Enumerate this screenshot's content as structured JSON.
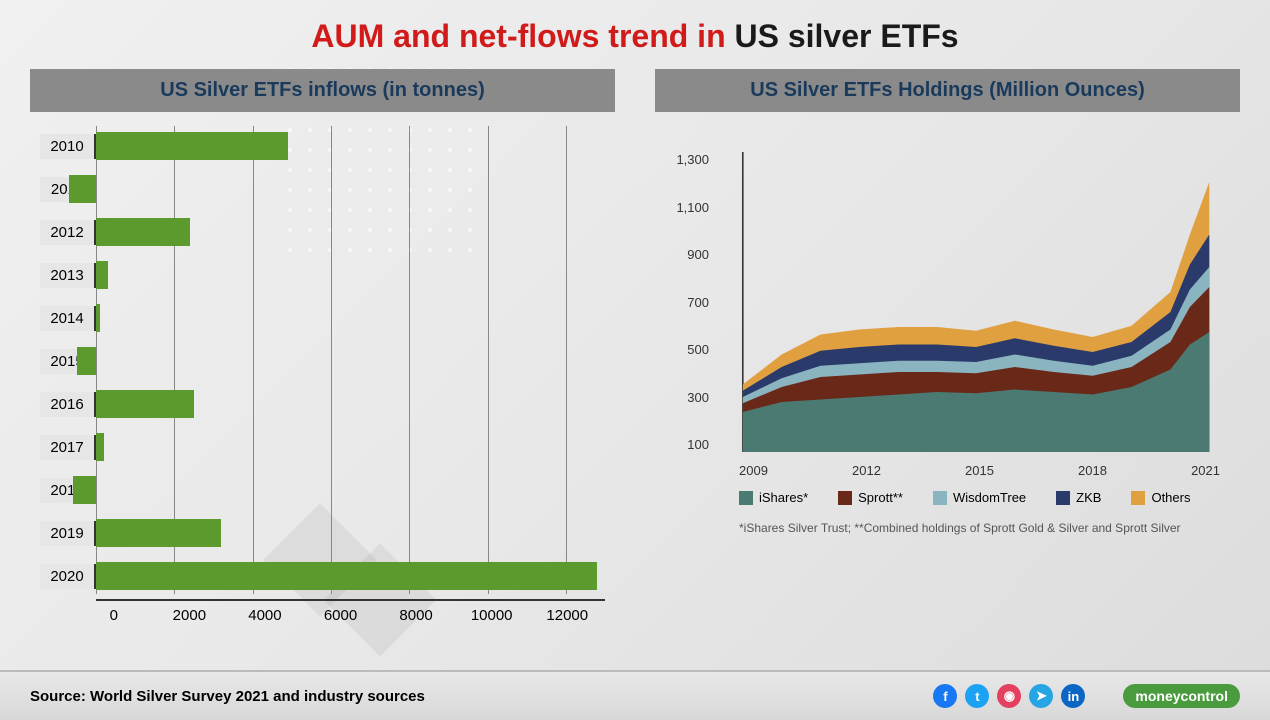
{
  "title": {
    "part1": "AUM and net-flows trend in ",
    "part2": "US silver ETFs"
  },
  "title_colors": {
    "part1": "#d11a1a",
    "part2": "#1a1a1a"
  },
  "title_fontsize": 32,
  "bar_chart": {
    "title": "US Silver ETFs inflows (in tonnes)",
    "type": "horizontal-bar",
    "bar_color": "#5c9a2e",
    "header_bg": "#8a8a8a",
    "header_text_color": "#1a3a5c",
    "years": [
      "2010",
      "2011",
      "2012",
      "2013",
      "2014",
      "2015",
      "2016",
      "2017",
      "2018",
      "2019",
      "2020"
    ],
    "values": [
      4900,
      -700,
      2400,
      300,
      100,
      -500,
      2500,
      200,
      -600,
      3200,
      12800
    ],
    "xlim": [
      -1000,
      13000
    ],
    "xticks": [
      0,
      2000,
      4000,
      6000,
      8000,
      10000,
      12000
    ]
  },
  "area_chart": {
    "title": "US Silver ETFs Holdings (Million Ounces)",
    "type": "stacked-area",
    "header_bg": "#8a8a8a",
    "header_text_color": "#1a3a5c",
    "background_color": "#ffffff",
    "xlim": [
      2009,
      2021
    ],
    "xticks": [
      2009,
      2012,
      2015,
      2018,
      2021
    ],
    "ylim": [
      100,
      1300
    ],
    "yticks": [
      100,
      300,
      500,
      700,
      900,
      1100,
      1300
    ],
    "series": [
      {
        "name": "iShares*",
        "color": "#4a7a72"
      },
      {
        "name": "Sprott**",
        "color": "#6a2818"
      },
      {
        "name": "WisdomTree",
        "color": "#8ab4c0"
      },
      {
        "name": "ZKB",
        "color": "#2a3a6a"
      },
      {
        "name": "Others",
        "color": "#e0a040"
      }
    ],
    "x": [
      2009,
      2010,
      2011,
      2012,
      2013,
      2014,
      2015,
      2016,
      2017,
      2018,
      2019,
      2020,
      2020.5,
      2021
    ],
    "stacked_top": {
      "iShares": [
        260,
        300,
        310,
        320,
        330,
        340,
        335,
        350,
        340,
        330,
        360,
        430,
        530,
        580
      ],
      "Sprott": [
        295,
        360,
        400,
        410,
        420,
        420,
        415,
        440,
        420,
        405,
        440,
        540,
        680,
        760
      ],
      "WisdomTree": [
        320,
        395,
        445,
        455,
        465,
        465,
        460,
        490,
        465,
        445,
        485,
        590,
        750,
        840
      ],
      "ZKB": [
        345,
        440,
        505,
        520,
        530,
        530,
        520,
        555,
        525,
        500,
        540,
        660,
        850,
        970
      ],
      "Others": [
        370,
        490,
        570,
        590,
        600,
        600,
        585,
        625,
        590,
        560,
        605,
        740,
        970,
        1180
      ]
    }
  },
  "footnote": "*iShares Silver Trust; **Combined holdings of Sprott Gold & Silver and Sprott Silver",
  "source": "Source: World Silver Survey 2021 and industry sources",
  "social": [
    {
      "name": "facebook",
      "glyph": "f",
      "bg": "#1877f2"
    },
    {
      "name": "twitter",
      "glyph": "t",
      "bg": "#1da1f2"
    },
    {
      "name": "instagram",
      "glyph": "◉",
      "bg": "#e4405f"
    },
    {
      "name": "telegram",
      "glyph": "➤",
      "bg": "#26a5e4"
    },
    {
      "name": "linkedin",
      "glyph": "in",
      "bg": "#0a66c2"
    }
  ],
  "brand": "moneycontrol",
  "brand_color": "#4a9a3e"
}
